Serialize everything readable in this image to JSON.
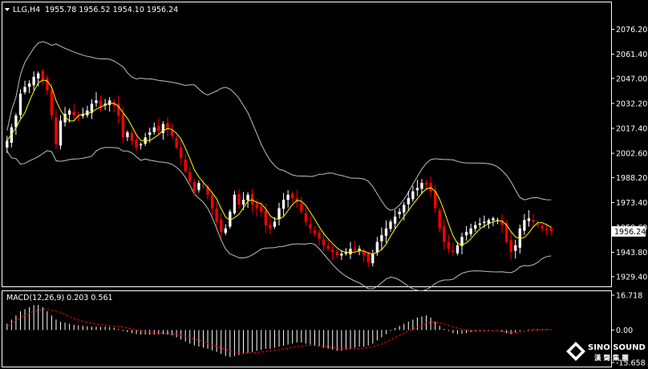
{
  "chart_data": [
    {
      "type": "candlestick",
      "title": "LLG,H4",
      "ohlc_label": "1955.78 1956.52 1954.10 1956.24",
      "last_price_label": "1956.24",
      "last_price": 1956.24,
      "ylim": [
        1926,
        2085
      ],
      "y_ticks": [
        "2076.20",
        "2061.40",
        "2047.00",
        "2032.20",
        "2017.40",
        "2002.60",
        "1988.20",
        "1973.40",
        "1958.60",
        "1943.80",
        "1929.40"
      ],
      "bollinger_bands": true,
      "moving_average": true,
      "closes": [
        2010,
        2018,
        2025,
        2038,
        2042,
        2044,
        2048,
        2050,
        2046,
        2040,
        2025,
        2008,
        2022,
        2026,
        2028,
        2025,
        2024,
        2026,
        2028,
        2032,
        2034,
        2030,
        2032,
        2034,
        2031,
        2025,
        2012,
        2015,
        2010,
        2006,
        2008,
        2012,
        2015,
        2018,
        2016,
        2020,
        2017,
        2013,
        2006,
        2000,
        1992,
        1986,
        1980,
        1985,
        1983,
        1978,
        1970,
        1962,
        1956,
        1958,
        1968,
        1978,
        1972,
        1975,
        1978,
        1972,
        1970,
        1968,
        1960,
        1958,
        1962,
        1970,
        1975,
        1978,
        1976,
        1974,
        1968,
        1962,
        1958,
        1955,
        1952,
        1948,
        1946,
        1944,
        1942,
        1943,
        1944,
        1946,
        1945,
        1946,
        1942,
        1938,
        1943,
        1950,
        1954,
        1958,
        1962,
        1965,
        1968,
        1972,
        1976,
        1980,
        1982,
        1985,
        1984,
        1980,
        1970,
        1958,
        1950,
        1946,
        1944,
        1948,
        1953,
        1956,
        1958,
        1960,
        1961,
        1962,
        1963,
        1964,
        1963,
        1960,
        1950,
        1944,
        1948,
        1958,
        1963,
        1964,
        1962,
        1960,
        1958,
        1957,
        1956.24
      ],
      "colors": {
        "up": "#ffffff",
        "down": "#ff0000",
        "band": "#c0c0c0",
        "ma": "#ffff00"
      }
    },
    {
      "type": "histogram",
      "title": "MACD(12,26,9) 0.203 0.561",
      "y_ticks": [
        "16.718",
        "0.00",
        "-15.658"
      ],
      "ylim": [
        -15.658,
        16.718
      ],
      "values": [
        3,
        5,
        7,
        9,
        10,
        11,
        12,
        12,
        11,
        9,
        7,
        5,
        4,
        3.5,
        3,
        2.5,
        2.2,
        2,
        1.8,
        1.6,
        1.6,
        1.5,
        1.6,
        1.5,
        1.2,
        0.5,
        -0.5,
        -1,
        -1.5,
        -2,
        -2.2,
        -2.2,
        -2.3,
        -2.2,
        -2.1,
        -2,
        -2.2,
        -2.5,
        -3.5,
        -4.5,
        -5.5,
        -6.5,
        -7.5,
        -8,
        -8.5,
        -9,
        -9.8,
        -10.5,
        -11.5,
        -12.5,
        -13,
        -12.5,
        -12,
        -11.5,
        -11,
        -10.5,
        -10,
        -9.5,
        -9,
        -9,
        -8.5,
        -8,
        -7.5,
        -7,
        -6.5,
        -6,
        -6,
        -6.5,
        -7,
        -7.5,
        -8,
        -8.5,
        -9,
        -9.5,
        -10,
        -10,
        -9.5,
        -9,
        -8.5,
        -8,
        -8,
        -7.5,
        -6.5,
        -5,
        -3.5,
        -2,
        -0.5,
        1,
        2,
        3,
        4,
        5,
        6,
        6.5,
        7,
        6,
        4,
        2,
        0.5,
        -0.5,
        -1.5,
        -2,
        -1.8,
        -1.5,
        -1,
        -0.8,
        -0.5,
        -0.3,
        -0.2,
        -0.1,
        -0.2,
        -0.8,
        -1.5,
        -2,
        -1.5,
        -0.5,
        0,
        0.3,
        0.4,
        0.4,
        0.3,
        0.3,
        0.2
      ],
      "signal": [
        2,
        3,
        4.5,
        6,
        7,
        8,
        9,
        9.5,
        10,
        10,
        9.5,
        9,
        8.5,
        7.5,
        6.5,
        5.5,
        4.8,
        4.2,
        3.6,
        3.2,
        2.8,
        2.5,
        2.3,
        2.1,
        2,
        1.8,
        1.4,
        1,
        0.5,
        0,
        -0.4,
        -0.8,
        -1,
        -1.2,
        -1.4,
        -1.5,
        -1.6,
        -1.8,
        -2.1,
        -2.5,
        -3,
        -3.6,
        -4.3,
        -5,
        -5.7,
        -6.4,
        -7.1,
        -7.8,
        -8.6,
        -9.4,
        -10.1,
        -10.6,
        -10.9,
        -11.1,
        -11.1,
        -11,
        -10.8,
        -10.6,
        -10.3,
        -10.1,
        -9.8,
        -9.5,
        -9.2,
        -8.8,
        -8.4,
        -8,
        -7.7,
        -7.5,
        -7.4,
        -7.5,
        -7.6,
        -7.8,
        -8,
        -8.3,
        -8.6,
        -8.9,
        -9,
        -9.1,
        -9,
        -8.9,
        -8.7,
        -8.5,
        -8.1,
        -7.5,
        -6.7,
        -5.8,
        -4.8,
        -3.7,
        -2.6,
        -1.5,
        -0.5,
        0.5,
        1.5,
        2.4,
        3.2,
        3.7,
        3.8,
        3.5,
        3,
        2.3,
        1.6,
        0.9,
        0.4,
        0,
        -0.3,
        -0.4,
        -0.5,
        -0.5,
        -0.4,
        -0.4,
        -0.5,
        -0.7,
        -1,
        -1.2,
        -1.2,
        -1,
        -0.7,
        -0.4,
        -0.2,
        0,
        0.1,
        0.2,
        0.56
      ],
      "colors": {
        "hist": "#ffffff",
        "signal": "#ff0000"
      }
    }
  ],
  "logo": {
    "line1": "SINO SOUND",
    "line2": "漢 聲 集 團"
  }
}
